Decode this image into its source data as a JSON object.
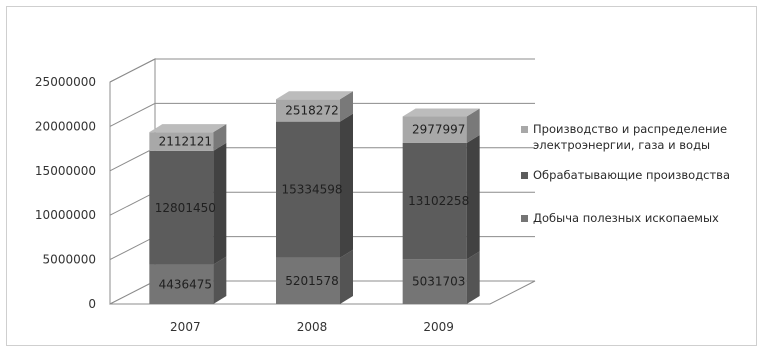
{
  "chart_data": {
    "type": "bar",
    "stacked": true,
    "three_d": true,
    "categories": [
      "2007",
      "2008",
      "2009"
    ],
    "series": [
      {
        "name": "Добыча полезных ископаемых",
        "values": [
          4436475,
          5201578,
          5031703
        ],
        "color": "#757575"
      },
      {
        "name": "Обрабатывающие производства",
        "values": [
          12801450,
          15334598,
          13102258
        ],
        "color": "#5c5c5c"
      },
      {
        "name": "Производство и распределение электроэнергии, газа и воды",
        "legend_lines": [
          "Производство и распределение",
          "электроэнергии, газа и воды"
        ],
        "values": [
          2112121,
          2518272,
          2977997
        ],
        "color": "#a8a8a8"
      }
    ],
    "data_labels": [
      [
        "4436475",
        "5201578",
        "5031703"
      ],
      [
        "12801450",
        "15334598",
        "13102258"
      ],
      [
        "2112121",
        "2518272",
        "2977997"
      ]
    ],
    "y_ticks": [
      "0",
      "5000000",
      "10000000",
      "15000000",
      "20000000",
      "25000000"
    ],
    "ylim": [
      0,
      25000000
    ],
    "grid": true,
    "legend_position": "right",
    "title": "",
    "xlabel": "",
    "ylabel": ""
  }
}
